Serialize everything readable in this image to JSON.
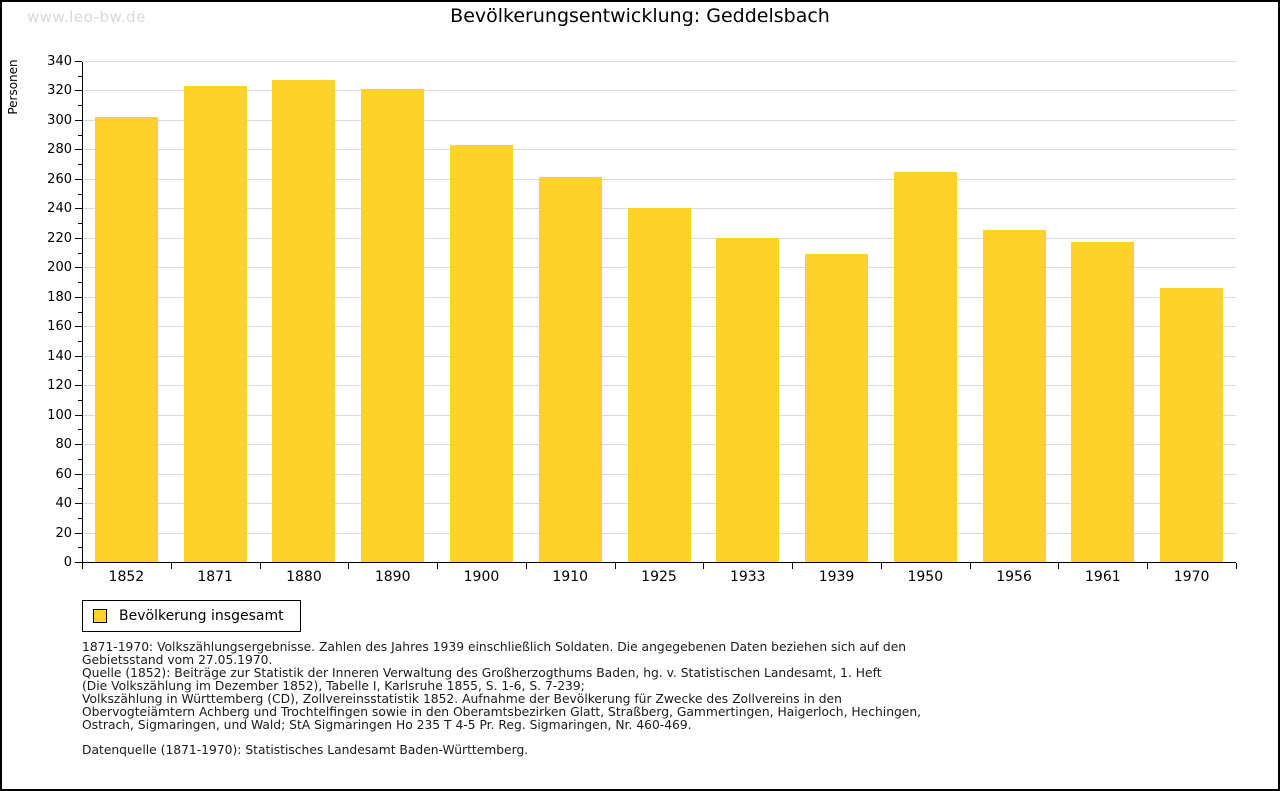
{
  "watermark": "www.leo-bw.de",
  "title": "Bevölkerungsentwicklung: Geddelsbach",
  "chart_data": {
    "type": "bar",
    "title": "Bevölkerungsentwicklung: Geddelsbach",
    "xlabel": "",
    "ylabel": "Personen",
    "categories": [
      "1852",
      "1871",
      "1880",
      "1890",
      "1900",
      "1910",
      "1925",
      "1933",
      "1939",
      "1950",
      "1956",
      "1961",
      "1970"
    ],
    "values": [
      302,
      323,
      327,
      321,
      283,
      261,
      240,
      220,
      209,
      265,
      225,
      217,
      186
    ],
    "series_name": "Bevölkerung insgesamt",
    "ylim": [
      0,
      340
    ],
    "ytick_step": 20,
    "ytick_minor_step": 10,
    "grid": true,
    "legend_position": "bottom-left"
  },
  "legend": {
    "label": "Bevölkerung insgesamt"
  },
  "footer": {
    "lines": [
      "1871-1970: Volkszählungsergebnisse. Zahlen des Jahres 1939 einschließlich Soldaten. Die angegebenen Daten beziehen sich auf den",
      "Gebietsstand vom 27.05.1970.",
      "Quelle (1852): Beiträge zur Statistik der Inneren Verwaltung des Großherzogthums Baden, hg. v. Statistischen Landesamt, 1. Heft",
      "(Die Volkszählung im Dezember 1852), Tabelle I, Karlsruhe 1855, S. 1-6, S. 7-239;",
      "Volkszählung in Württemberg (CD), Zollvereinsstatistik 1852. Aufnahme der Bevölkerung für Zwecke des Zollvereins in den",
      "Obervogteiämtern Achberg und Trochtelfingen sowie in den Oberamtsbezirken Glatt, Straßberg, Gammertingen, Haigerloch, Hechingen,",
      "Ostrach, Sigmaringen, und Wald; StA Sigmaringen Ho 235 T 4-5 Pr. Reg. Sigmaringen, Nr. 460-469."
    ],
    "datasource": "Datenquelle (1871-1970): Statistisches Landesamt Baden-Württemberg."
  },
  "colors": {
    "bar": "#fdd32b",
    "grid": "#d9d9d9",
    "axis": "#000000",
    "watermark": "#d8d8d8",
    "text": "#000000"
  }
}
